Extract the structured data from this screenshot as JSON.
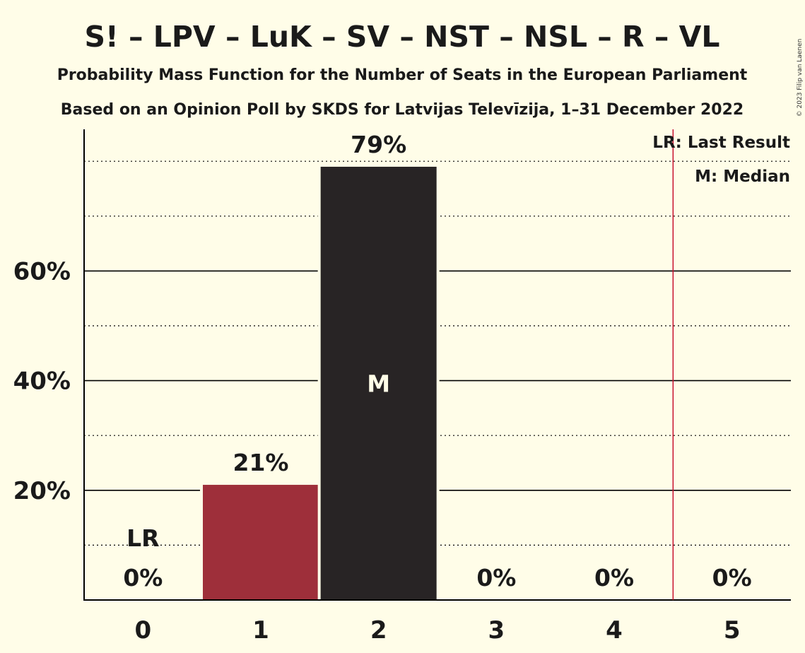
{
  "header": {
    "title": "S! – LPV – LuK – SV – NST – NSL – R – VL",
    "subtitle_1": "Probability Mass Function for the Number of Seats in the European Parliament",
    "subtitle_2": "Based on an Opinion Poll by SKDS for Latvijas Televīzija, 1–31 December 2022",
    "copyright": "© 2023 Filip van Laenen"
  },
  "legend": {
    "lr": "LR: Last Result",
    "m": "M: Median"
  },
  "chart_data": {
    "type": "bar",
    "title": "S! – LPV – LuK – SV – NST – NSL – R – VL",
    "categories": [
      "0",
      "1",
      "2",
      "3",
      "4",
      "5"
    ],
    "values": [
      0,
      21,
      79,
      0,
      0,
      0
    ],
    "value_labels": [
      "0%",
      "21%",
      "79%",
      "0%",
      "0%",
      "0%"
    ],
    "y_ticks": [
      20,
      40,
      60
    ],
    "y_tick_labels": [
      "20%",
      "40%",
      "60%"
    ],
    "ylim": [
      0,
      86
    ],
    "grid": "solid at labeled ticks, dotted at intermediate 10% steps",
    "last_result_seat": 0,
    "last_result_label": "LR",
    "median_seat": 2,
    "median_label": "M",
    "lr_line_after_seat": 4.5,
    "colors": {
      "background": "#fffde8",
      "bar_highlight": "#9e2f3a",
      "bar_main": "#282425",
      "lr_line": "#c8102e",
      "text": "#1a1a1a"
    },
    "legend_position": "top-right"
  }
}
